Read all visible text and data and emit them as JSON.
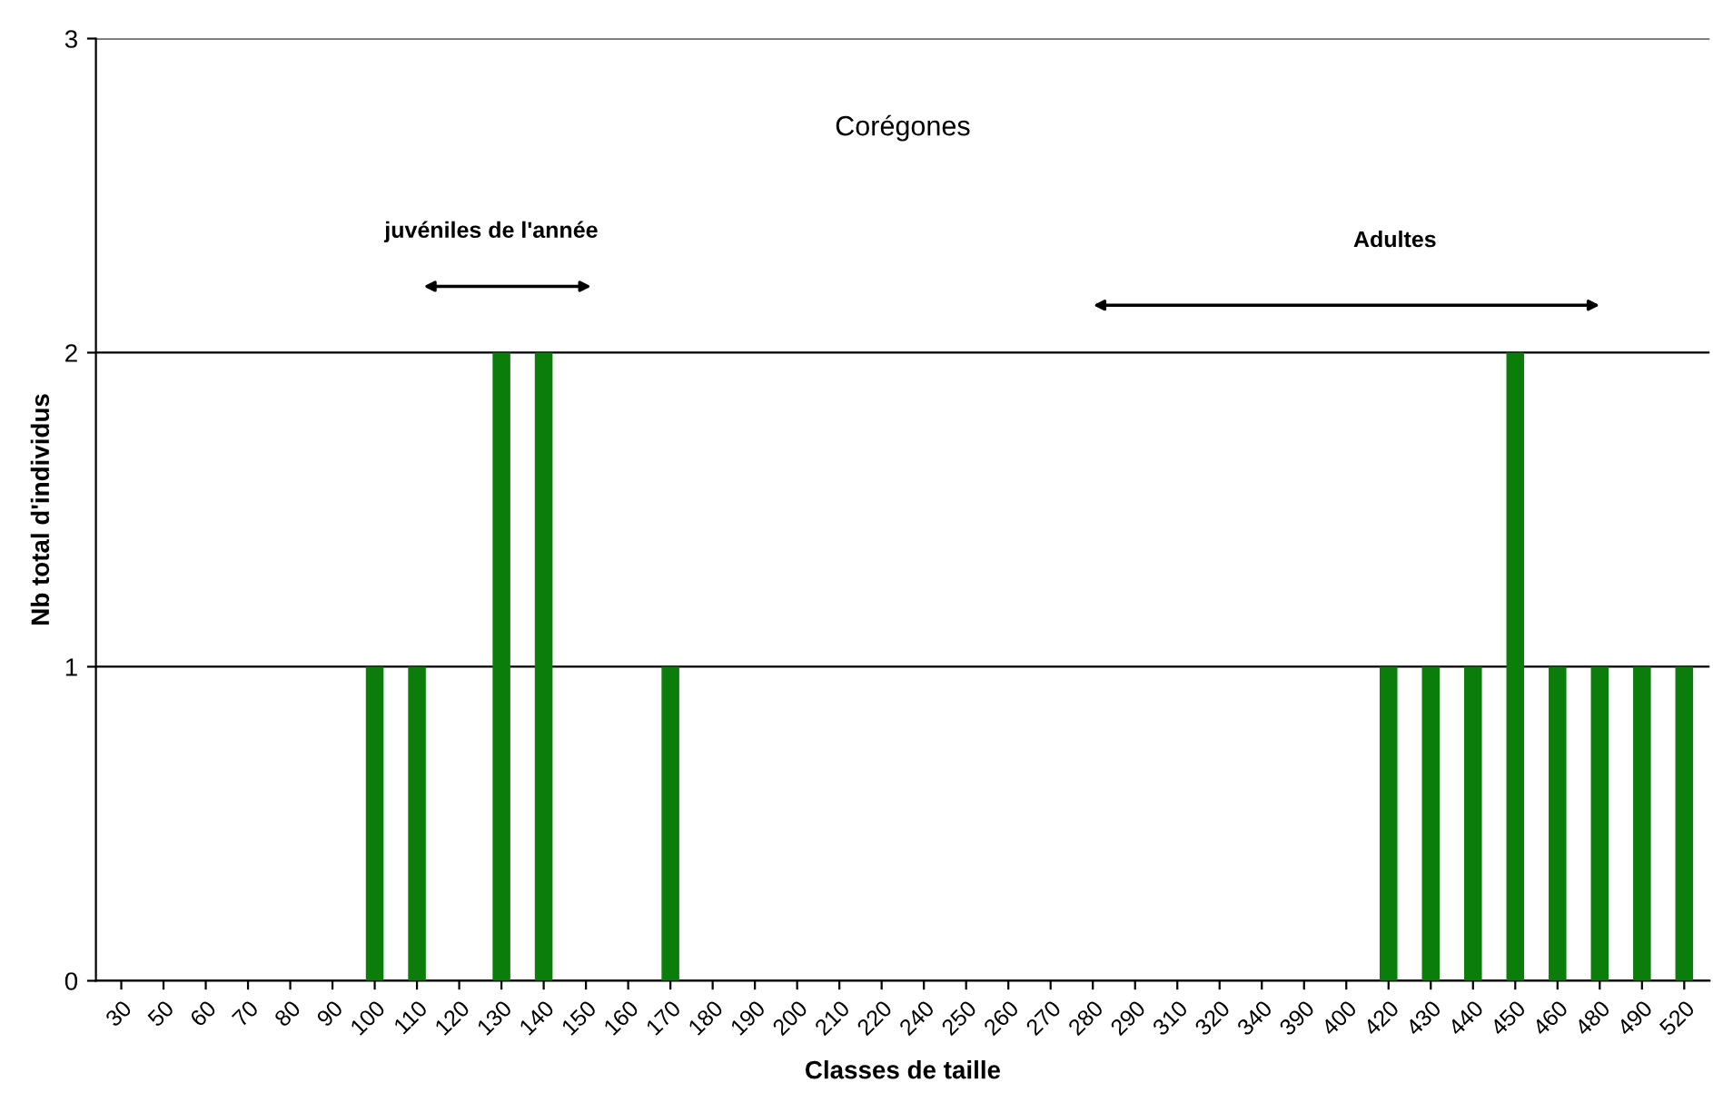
{
  "chart_data": {
    "type": "bar",
    "title": "Corégones",
    "xlabel": "Classes de taille",
    "ylabel": "Nb total d'individus",
    "categories": [
      "30",
      "50",
      "60",
      "70",
      "80",
      "90",
      "100",
      "110",
      "120",
      "130",
      "140",
      "150",
      "160",
      "170",
      "180",
      "190",
      "200",
      "210",
      "220",
      "240",
      "250",
      "260",
      "270",
      "280",
      "290",
      "310",
      "320",
      "340",
      "390",
      "400",
      "420",
      "430",
      "440",
      "450",
      "460",
      "480",
      "490",
      "520"
    ],
    "values": [
      0,
      0,
      0,
      0,
      0,
      0,
      1,
      1,
      0,
      2,
      2,
      0,
      0,
      1,
      0,
      0,
      0,
      0,
      0,
      0,
      0,
      0,
      0,
      0,
      0,
      0,
      0,
      0,
      0,
      0,
      1,
      1,
      1,
      2,
      1,
      1,
      1,
      1
    ],
    "color": "#0a7d0a",
    "ylim": [
      0,
      3
    ],
    "yticks": [
      0,
      1,
      2,
      3
    ],
    "grid": "y",
    "legend": false,
    "annotations": [
      "juvéniles de l'année",
      "Adultes"
    ]
  }
}
